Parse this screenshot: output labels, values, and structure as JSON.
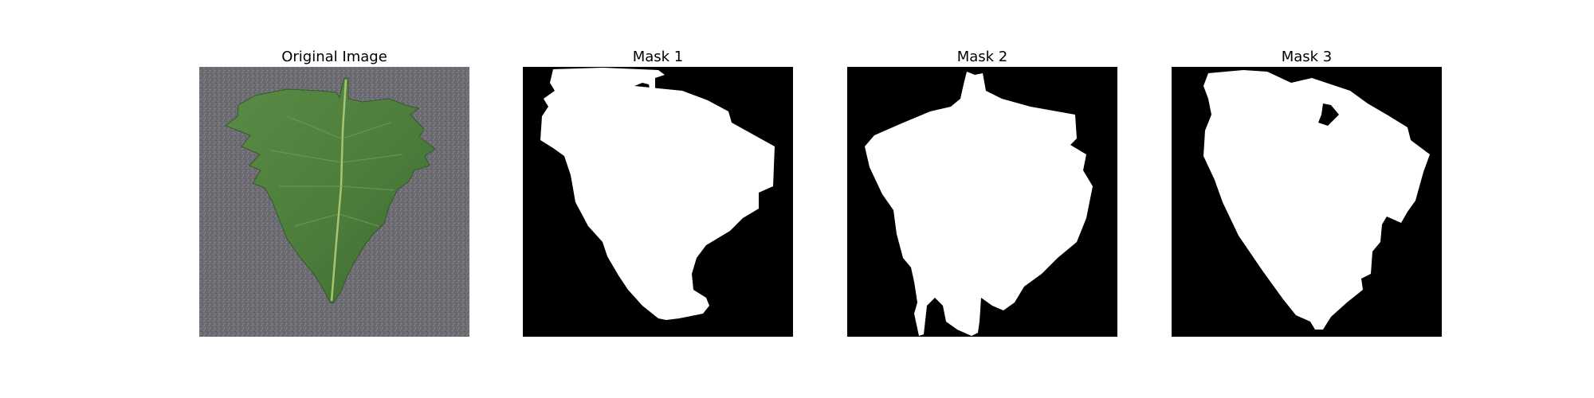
{
  "figure": {
    "panels": [
      {
        "title": "Original Image",
        "kind": "photo",
        "subject": "leaf-photo-icon"
      },
      {
        "title": "Mask 1",
        "kind": "mask"
      },
      {
        "title": "Mask 2",
        "kind": "mask"
      },
      {
        "title": "Mask 3",
        "kind": "mask"
      }
    ]
  },
  "colors": {
    "background": "#ffffff",
    "mask_background": "#000000",
    "mask_foreground": "#ffffff",
    "photo_background": "#6d6c73",
    "leaf_green": "#4f7f3d",
    "leaf_dark": "#3e6a2f",
    "leaf_vein": "#9dbd6a"
  }
}
